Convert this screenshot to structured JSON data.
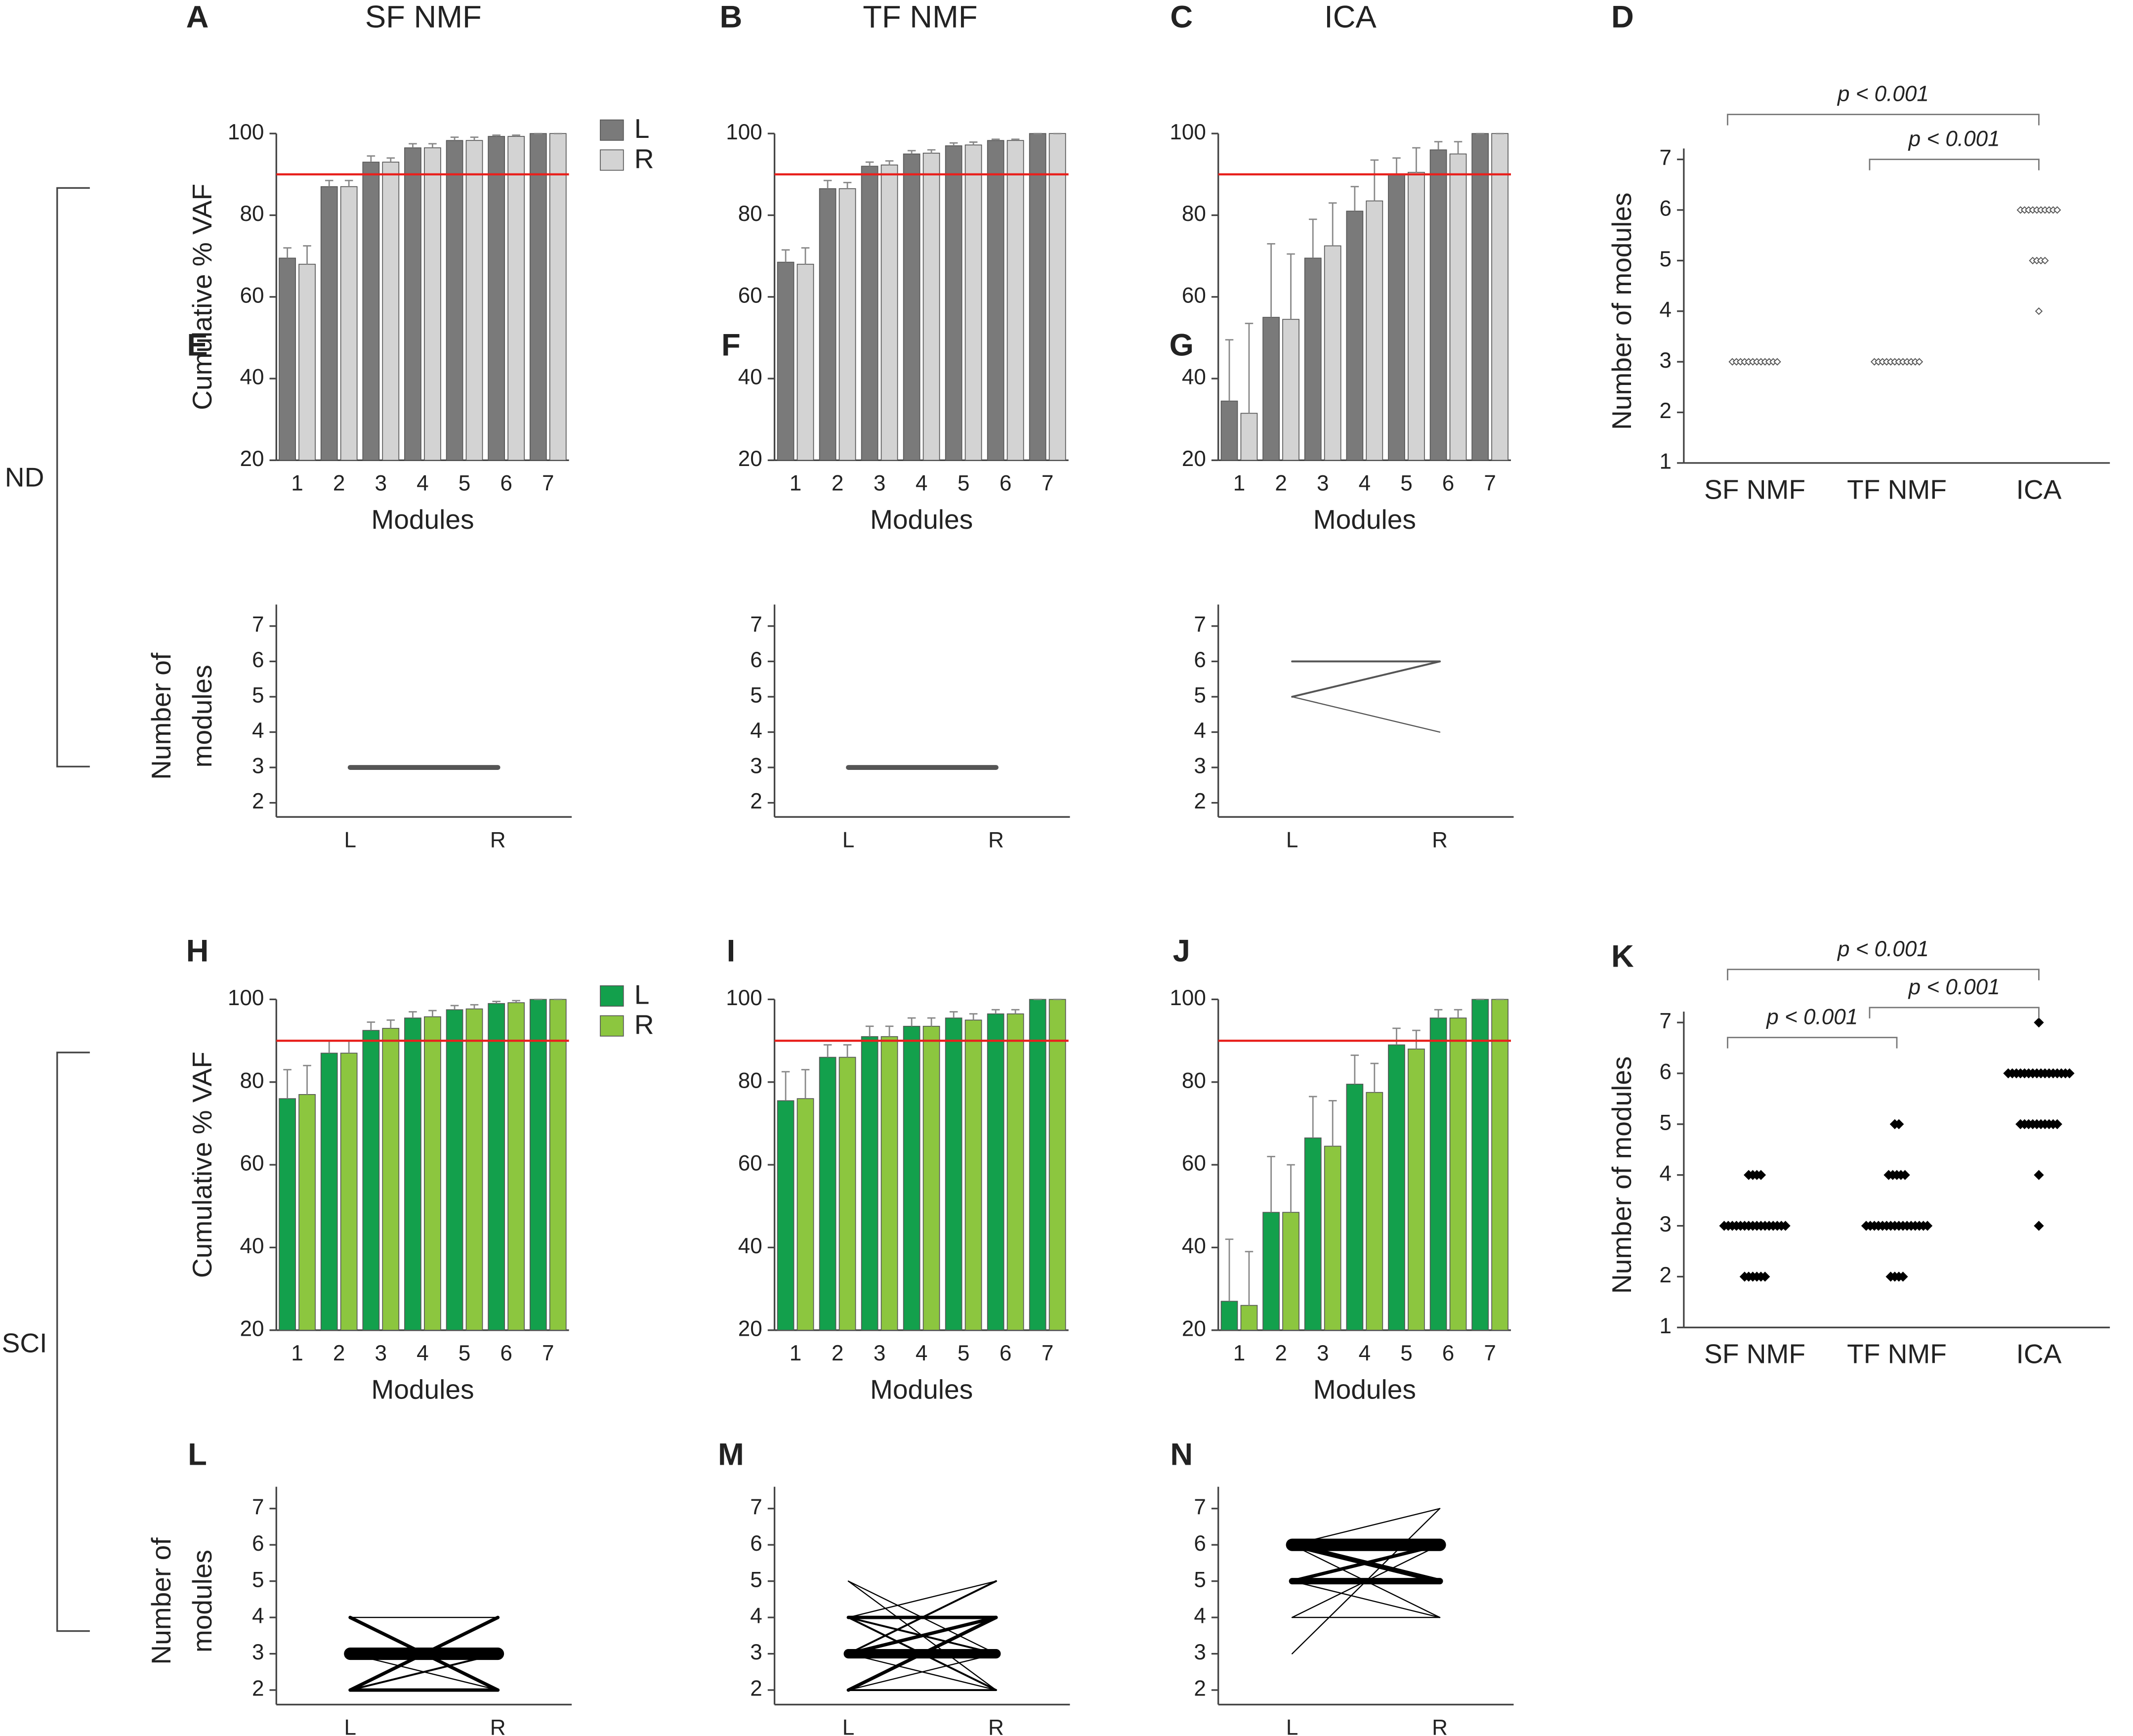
{
  "row_labels": [
    "ND",
    "SCI"
  ],
  "chart_data": [
    {
      "type": "bar",
      "panel": "A",
      "title": "SF NMF",
      "ylabel": "Cumulative % VAF",
      "xlabel": "Modules",
      "categories": [
        1,
        2,
        3,
        4,
        5,
        6,
        7
      ],
      "ylim": [
        20,
        100
      ],
      "yticks": [
        20,
        40,
        60,
        80,
        100
      ],
      "reference_line": 90,
      "reference_color": "#e8211d",
      "legend": true,
      "series": [
        {
          "name": "L",
          "color": "#7a7a7a",
          "values": [
            69.5,
            87,
            93,
            96.5,
            98.3,
            99.3,
            100
          ],
          "errors": [
            2.5,
            1.5,
            1.5,
            1,
            0.8,
            0.3,
            0
          ]
        },
        {
          "name": "R",
          "color": "#d3d3d3",
          "values": [
            68,
            87,
            93,
            96.5,
            98.3,
            99.3,
            100
          ],
          "errors": [
            4.5,
            1.5,
            1,
            1,
            0.8,
            0.3,
            0
          ]
        }
      ]
    },
    {
      "type": "bar",
      "panel": "B",
      "title": "TF NMF",
      "xlabel": "Modules",
      "categories": [
        1,
        2,
        3,
        4,
        5,
        6,
        7
      ],
      "ylim": [
        20,
        100
      ],
      "yticks": [
        20,
        40,
        60,
        80,
        100
      ],
      "reference_line": 90,
      "reference_color": "#e8211d",
      "legend": false,
      "series": [
        {
          "color": "#7a7a7a",
          "values": [
            68.5,
            86.5,
            92,
            95,
            97,
            98.3,
            100
          ],
          "errors": [
            3,
            2,
            1,
            0.8,
            0.7,
            0.3,
            0
          ]
        },
        {
          "color": "#d3d3d3",
          "values": [
            68,
            86.5,
            92.3,
            95.2,
            97.2,
            98.3,
            100
          ],
          "errors": [
            4,
            1.5,
            1,
            0.8,
            0.7,
            0.3,
            0
          ]
        }
      ]
    },
    {
      "type": "bar",
      "panel": "C",
      "title": "ICA",
      "xlabel": "Modules",
      "categories": [
        1,
        2,
        3,
        4,
        5,
        6,
        7
      ],
      "ylim": [
        20,
        100
      ],
      "yticks": [
        20,
        40,
        60,
        80,
        100
      ],
      "reference_line": 90,
      "reference_color": "#e8211d",
      "legend": false,
      "series": [
        {
          "color": "#7a7a7a",
          "values": [
            34.5,
            55,
            69.5,
            81,
            90,
            96,
            100
          ],
          "errors": [
            15,
            18,
            9.5,
            6,
            4,
            2,
            0
          ]
        },
        {
          "color": "#d3d3d3",
          "values": [
            31.5,
            54.5,
            72.5,
            83.5,
            90.5,
            95,
            100
          ],
          "errors": [
            22,
            16,
            10.5,
            10,
            6,
            3,
            0
          ]
        }
      ]
    },
    {
      "type": "dot",
      "panel": "D",
      "ylabel": "Number of modules",
      "categories": [
        "SF NMF",
        "TF NMF",
        "ICA"
      ],
      "ylim": [
        1,
        7
      ],
      "yticks": [
        1,
        2,
        3,
        4,
        5,
        6,
        7
      ],
      "marker": "open",
      "color": "#555555",
      "groups": [
        [
          3,
          3,
          3,
          3,
          3,
          3,
          3,
          3,
          3,
          3,
          3,
          3
        ],
        [
          3,
          3,
          3,
          3,
          3,
          3,
          3,
          3,
          3,
          3,
          3,
          3
        ],
        [
          6,
          6,
          6,
          6,
          6,
          6,
          6,
          6,
          6,
          6,
          5,
          5,
          5,
          5,
          4
        ]
      ],
      "brackets": [
        {
          "between": [
            "SF NMF",
            "ICA"
          ],
          "label": "p < 0.001"
        },
        {
          "between": [
            "TF NMF",
            "ICA"
          ],
          "label": "p < 0.001"
        }
      ]
    },
    {
      "type": "line",
      "panel": "E",
      "ylabel": [
        "Number of",
        "modules"
      ],
      "categories": [
        "L",
        "R"
      ],
      "ylim": [
        1.6,
        7.3
      ],
      "yticks": [
        2,
        3,
        4,
        5,
        6,
        7
      ],
      "color": "#555555",
      "lines": [
        {
          "values": [
            3,
            3
          ],
          "count": 3
        }
      ]
    },
    {
      "type": "line",
      "panel": "F",
      "categories": [
        "L",
        "R"
      ],
      "ylim": [
        1.6,
        7.3
      ],
      "yticks": [
        2,
        3,
        4,
        5,
        6,
        7
      ],
      "color": "#555555",
      "lines": [
        {
          "values": [
            3,
            3
          ],
          "count": 3
        }
      ]
    },
    {
      "type": "line",
      "panel": "G",
      "categories": [
        "L",
        "R"
      ],
      "ylim": [
        1.6,
        7.3
      ],
      "yticks": [
        2,
        3,
        4,
        5,
        6,
        7
      ],
      "color": "#555555",
      "lines": [
        {
          "values": [
            6,
            6
          ],
          "count": 1
        },
        {
          "values": [
            5,
            6
          ],
          "count": 1
        },
        {
          "values": [
            5,
            4
          ],
          "count": 0.5
        }
      ]
    },
    {
      "type": "bar",
      "panel": "H",
      "ylabel": "Cumulative % VAF",
      "xlabel": "Modules",
      "categories": [
        1,
        2,
        3,
        4,
        5,
        6,
        7
      ],
      "ylim": [
        20,
        100
      ],
      "yticks": [
        20,
        40,
        60,
        80,
        100
      ],
      "reference_line": 90,
      "reference_color": "#e8211d",
      "legend": true,
      "series": [
        {
          "name": "L",
          "color": "#13a04c",
          "values": [
            76,
            87,
            92.5,
            95.5,
            97.5,
            99,
            100
          ],
          "errors": [
            7,
            3,
            2,
            1.5,
            1,
            0.5,
            0
          ]
        },
        {
          "name": "R",
          "color": "#8cc63f",
          "values": [
            77,
            87,
            93,
            95.8,
            97.7,
            99.2,
            100
          ],
          "errors": [
            7,
            3,
            2,
            1.5,
            1,
            0.5,
            0
          ]
        }
      ]
    },
    {
      "type": "bar",
      "panel": "I",
      "xlabel": "Modules",
      "categories": [
        1,
        2,
        3,
        4,
        5,
        6,
        7
      ],
      "ylim": [
        20,
        100
      ],
      "yticks": [
        20,
        40,
        60,
        80,
        100
      ],
      "reference_line": 90,
      "reference_color": "#e8211d",
      "legend": false,
      "series": [
        {
          "color": "#13a04c",
          "values": [
            75.5,
            86,
            91,
            93.5,
            95.5,
            96.5,
            100
          ],
          "errors": [
            7,
            3,
            2.5,
            2,
            1.5,
            1,
            0
          ]
        },
        {
          "color": "#8cc63f",
          "values": [
            76,
            86,
            91,
            93.5,
            95,
            96.5,
            100
          ],
          "errors": [
            7,
            3,
            2.5,
            2,
            1.5,
            1,
            0
          ]
        }
      ]
    },
    {
      "type": "bar",
      "panel": "J",
      "xlabel": "Modules",
      "categories": [
        1,
        2,
        3,
        4,
        5,
        6,
        7
      ],
      "ylim": [
        20,
        100
      ],
      "yticks": [
        20,
        40,
        60,
        80,
        100
      ],
      "reference_line": 90,
      "reference_color": "#e8211d",
      "legend": false,
      "series": [
        {
          "color": "#13a04c",
          "values": [
            27,
            48.5,
            66.5,
            79.5,
            89,
            95.5,
            100
          ],
          "errors": [
            15,
            13.5,
            10,
            7,
            4,
            2,
            0
          ]
        },
        {
          "color": "#8cc63f",
          "values": [
            26,
            48.5,
            64.5,
            77.5,
            88,
            95.5,
            100
          ],
          "errors": [
            13,
            11.5,
            11,
            7,
            4.5,
            2,
            0
          ]
        }
      ]
    },
    {
      "type": "dot",
      "panel": "K",
      "ylabel": "Number of modules",
      "categories": [
        "SF NMF",
        "TF NMF",
        "ICA"
      ],
      "ylim": [
        1,
        7
      ],
      "yticks": [
        1,
        2,
        3,
        4,
        5,
        6,
        7
      ],
      "marker": "filled",
      "color": "#000000",
      "groups": [
        [
          4,
          4,
          4,
          4,
          3,
          3,
          3,
          3,
          3,
          3,
          3,
          3,
          3,
          3,
          3,
          3,
          3,
          3,
          3,
          3,
          2,
          2,
          2,
          2,
          2,
          2
        ],
        [
          5,
          5,
          4,
          4,
          4,
          4,
          4,
          3,
          3,
          3,
          3,
          3,
          3,
          3,
          3,
          3,
          3,
          3,
          3,
          3,
          3,
          3,
          3,
          2,
          2,
          2,
          2
        ],
        [
          7,
          6,
          6,
          6,
          6,
          6,
          6,
          6,
          6,
          6,
          6,
          6,
          6,
          6,
          6,
          6,
          6,
          5,
          5,
          5,
          5,
          5,
          5,
          5,
          5,
          5,
          5,
          4,
          3
        ]
      ],
      "brackets": [
        {
          "between": [
            "SF NMF",
            "ICA"
          ],
          "label": "p < 0.001"
        },
        {
          "between": [
            "SF NMF",
            "TF NMF"
          ],
          "label": "p < 0.001"
        },
        {
          "between": [
            "TF NMF",
            "ICA"
          ],
          "label": "p < 0.001"
        }
      ]
    },
    {
      "type": "line",
      "panel": "L",
      "ylabel": [
        "Number of",
        "modules"
      ],
      "categories": [
        "L",
        "R"
      ],
      "ylim": [
        1.6,
        7.3
      ],
      "yticks": [
        2,
        3,
        4,
        5,
        6,
        7
      ],
      "color": "#000000",
      "lines": [
        {
          "values": [
            3,
            3
          ],
          "count": 8
        },
        {
          "values": [
            4,
            2
          ],
          "count": 2
        },
        {
          "values": [
            2,
            4
          ],
          "count": 2
        },
        {
          "values": [
            2,
            2
          ],
          "count": 2
        },
        {
          "values": [
            4,
            4
          ],
          "count": 0.5
        },
        {
          "values": [
            3,
            2
          ],
          "count": 0.5
        },
        {
          "values": [
            2,
            3
          ],
          "count": 1
        }
      ]
    },
    {
      "type": "line",
      "panel": "M",
      "categories": [
        "L",
        "R"
      ],
      "ylim": [
        1.6,
        7.3
      ],
      "yticks": [
        2,
        3,
        4,
        5,
        6,
        7
      ],
      "color": "#000000",
      "lines": [
        {
          "values": [
            3,
            3
          ],
          "count": 6
        },
        {
          "values": [
            4,
            4
          ],
          "count": 2
        },
        {
          "values": [
            2,
            4
          ],
          "count": 2
        },
        {
          "values": [
            4,
            2
          ],
          "count": 1
        },
        {
          "values": [
            3,
            4
          ],
          "count": 2
        },
        {
          "values": [
            4,
            3
          ],
          "count": 1
        },
        {
          "values": [
            2,
            2
          ],
          "count": 1
        },
        {
          "values": [
            5,
            3
          ],
          "count": 0.5
        },
        {
          "values": [
            5,
            2
          ],
          "count": 0.5
        },
        {
          "values": [
            3,
            5
          ],
          "count": 1
        },
        {
          "values": [
            4,
            5
          ],
          "count": 0.5
        },
        {
          "values": [
            2,
            3
          ],
          "count": 0.5
        },
        {
          "values": [
            3,
            2
          ],
          "count": 0.5
        }
      ]
    },
    {
      "type": "line",
      "panel": "N",
      "categories": [
        "L",
        "R"
      ],
      "ylim": [
        1.6,
        7.3
      ],
      "yticks": [
        2,
        3,
        4,
        5,
        6,
        7
      ],
      "color": "#000000",
      "lines": [
        {
          "values": [
            6,
            6
          ],
          "count": 8
        },
        {
          "values": [
            5,
            5
          ],
          "count": 4
        },
        {
          "values": [
            6,
            5
          ],
          "count": 3
        },
        {
          "values": [
            5,
            6
          ],
          "count": 2
        },
        {
          "values": [
            3,
            7
          ],
          "count": 0.5
        },
        {
          "values": [
            6,
            7
          ],
          "count": 0.5
        },
        {
          "values": [
            4,
            4
          ],
          "count": 0.5
        },
        {
          "values": [
            6,
            4
          ],
          "count": 0.5
        },
        {
          "values": [
            4,
            6
          ],
          "count": 0.5
        },
        {
          "values": [
            5,
            4
          ],
          "count": 0.5
        }
      ]
    }
  ]
}
